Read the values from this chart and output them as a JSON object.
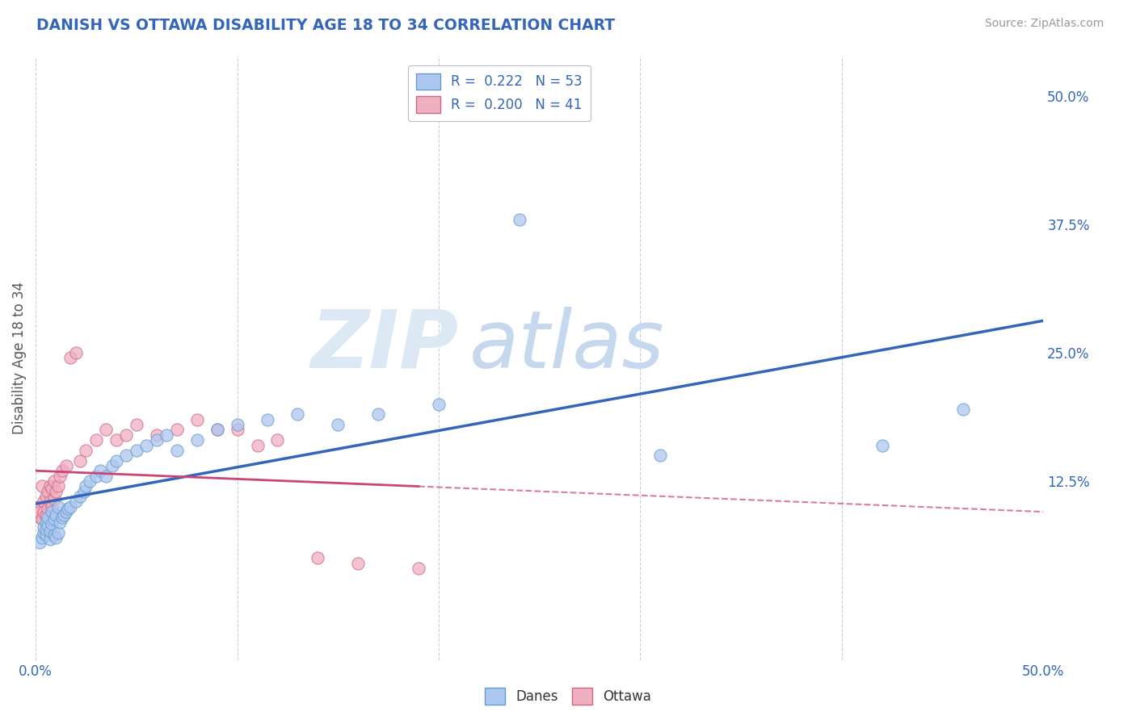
{
  "title": "DANISH VS OTTAWA DISABILITY AGE 18 TO 34 CORRELATION CHART",
  "source": "Source: ZipAtlas.com",
  "ylabel": "Disability Age 18 to 34",
  "xlim": [
    0.0,
    0.5
  ],
  "ylim": [
    -0.05,
    0.54
  ],
  "yticks_right": [
    0.125,
    0.25,
    0.375,
    0.5
  ],
  "ytick_right_labels": [
    "12.5%",
    "25.0%",
    "37.5%",
    "50.0%"
  ],
  "danes_color": "#adc8f0",
  "danes_edge_color": "#6699cc",
  "ottawa_color": "#f0b0c0",
  "ottawa_edge_color": "#cc6688",
  "danes_line_color": "#3366bb",
  "ottawa_line_color": "#cc4477",
  "r_danes": 0.222,
  "n_danes": 53,
  "r_ottawa": 0.2,
  "n_ottawa": 41,
  "watermark_zip": "ZIP",
  "watermark_atlas": "atlas",
  "background_color": "#ffffff",
  "grid_color": "#ccccdd",
  "danes_x": [
    0.002,
    0.003,
    0.004,
    0.004,
    0.005,
    0.005,
    0.005,
    0.006,
    0.006,
    0.007,
    0.007,
    0.008,
    0.008,
    0.009,
    0.009,
    0.01,
    0.01,
    0.011,
    0.011,
    0.012,
    0.013,
    0.014,
    0.015,
    0.016,
    0.017,
    0.02,
    0.022,
    0.024,
    0.025,
    0.027,
    0.03,
    0.032,
    0.035,
    0.038,
    0.04,
    0.045,
    0.05,
    0.055,
    0.06,
    0.065,
    0.07,
    0.08,
    0.09,
    0.1,
    0.115,
    0.13,
    0.15,
    0.17,
    0.2,
    0.24,
    0.31,
    0.42,
    0.46
  ],
  "danes_y": [
    0.065,
    0.07,
    0.075,
    0.08,
    0.085,
    0.072,
    0.078,
    0.082,
    0.09,
    0.068,
    0.076,
    0.083,
    0.095,
    0.072,
    0.088,
    0.07,
    0.092,
    0.075,
    0.1,
    0.085,
    0.09,
    0.092,
    0.095,
    0.098,
    0.1,
    0.105,
    0.11,
    0.115,
    0.12,
    0.125,
    0.13,
    0.135,
    0.13,
    0.14,
    0.145,
    0.15,
    0.155,
    0.16,
    0.165,
    0.17,
    0.155,
    0.165,
    0.175,
    0.18,
    0.185,
    0.19,
    0.18,
    0.19,
    0.2,
    0.38,
    0.15,
    0.16,
    0.195
  ],
  "ottawa_x": [
    0.001,
    0.002,
    0.002,
    0.003,
    0.003,
    0.004,
    0.004,
    0.005,
    0.005,
    0.006,
    0.006,
    0.007,
    0.007,
    0.008,
    0.008,
    0.009,
    0.009,
    0.01,
    0.011,
    0.012,
    0.013,
    0.015,
    0.017,
    0.02,
    0.022,
    0.025,
    0.03,
    0.035,
    0.04,
    0.045,
    0.05,
    0.06,
    0.07,
    0.08,
    0.09,
    0.1,
    0.11,
    0.12,
    0.14,
    0.16,
    0.19
  ],
  "ottawa_y": [
    0.1,
    0.09,
    0.095,
    0.088,
    0.12,
    0.095,
    0.105,
    0.092,
    0.11,
    0.098,
    0.115,
    0.105,
    0.12,
    0.1,
    0.118,
    0.108,
    0.125,
    0.115,
    0.12,
    0.13,
    0.135,
    0.14,
    0.245,
    0.25,
    0.145,
    0.155,
    0.165,
    0.175,
    0.165,
    0.17,
    0.18,
    0.17,
    0.175,
    0.185,
    0.175,
    0.175,
    0.16,
    0.165,
    0.05,
    0.045,
    0.04
  ]
}
